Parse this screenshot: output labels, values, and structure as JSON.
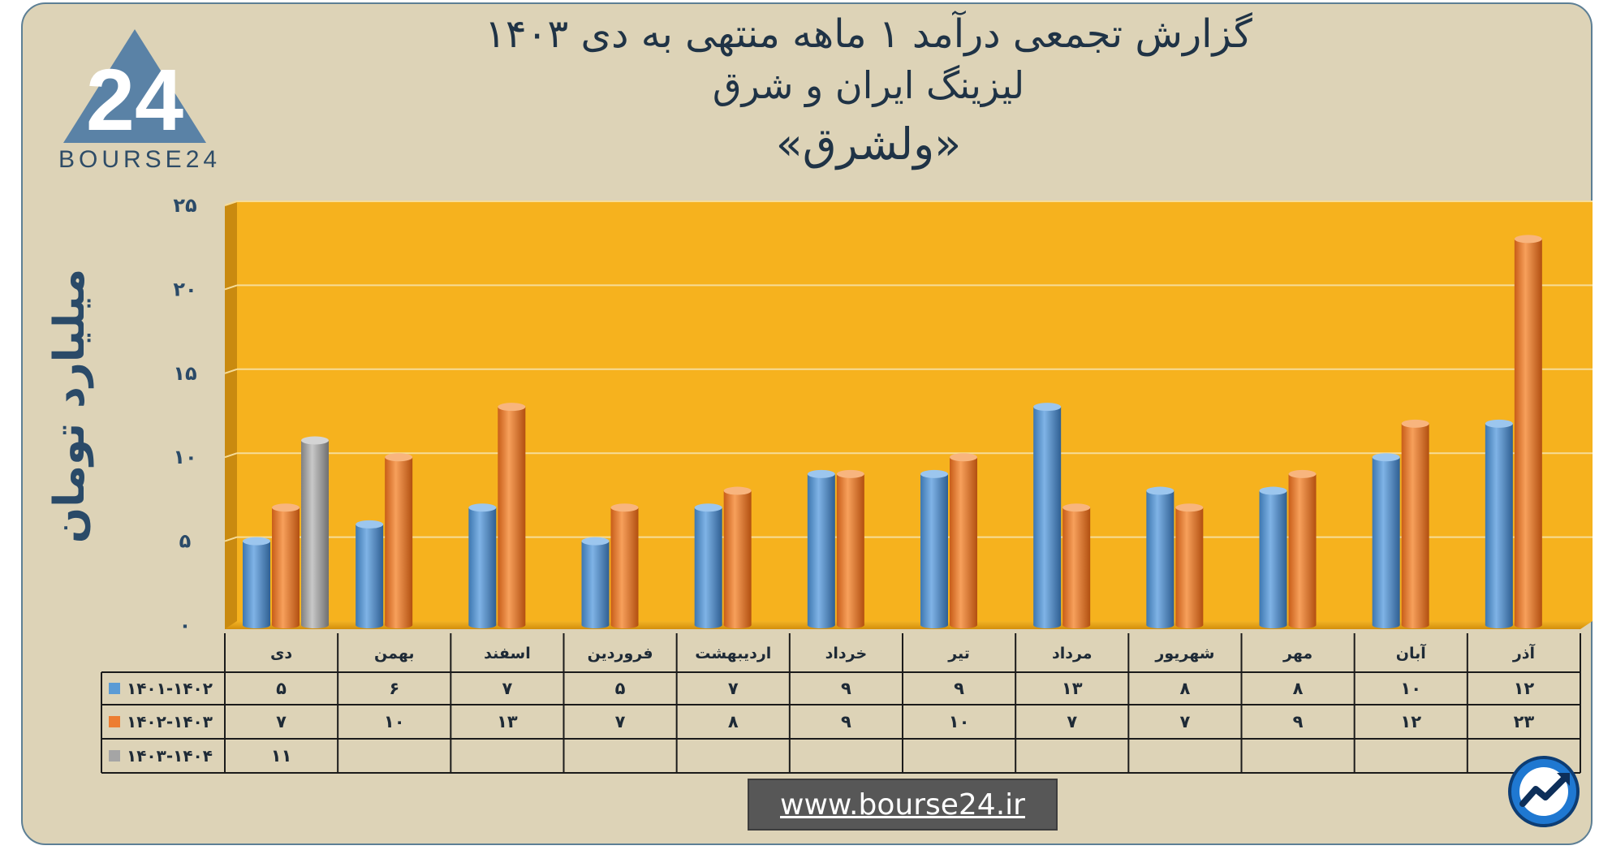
{
  "title": {
    "line1": "گزارش تجمعی درآمد ۱ ماهه منتهی به دی ۱۴۰۳",
    "line2": "لیزینگ ایران و شرق",
    "line3": "«ولشرق»"
  },
  "logo": {
    "text": "BOURSE24",
    "mark": "24"
  },
  "url": "www.bourse24.ir",
  "colors": {
    "panel": "#ddd3b7",
    "plot": "#f6b21e",
    "series_1401": "#5b9bd5",
    "series_1402": "#ed7d31",
    "series_1403": "#a5a5a5",
    "text": "#1f3346"
  },
  "chart_data": {
    "type": "bar",
    "ylabel": "میلیارد تومان",
    "ylim": [
      0,
      25
    ],
    "yticks": [
      {
        "value": 0,
        "label": "۰"
      },
      {
        "value": 5,
        "label": "۵"
      },
      {
        "value": 10,
        "label": "۱۰"
      },
      {
        "value": 15,
        "label": "۱۵"
      },
      {
        "value": 20,
        "label": "۲۰"
      },
      {
        "value": 25,
        "label": "۲۵"
      }
    ],
    "grid": true,
    "categories": [
      "دی",
      "بهمن",
      "اسفند",
      "فروردین",
      "اردیبهشت",
      "خرداد",
      "تیر",
      "مرداد",
      "شهریور",
      "مهر",
      "آبان",
      "آذر"
    ],
    "series": [
      {
        "name": "۱۴۰۱-۱۴۰۲",
        "values": [
          5,
          6,
          7,
          5,
          7,
          9,
          9,
          13,
          8,
          8,
          10,
          12
        ],
        "labels": [
          "۵",
          "۶",
          "۷",
          "۵",
          "۷",
          "۹",
          "۹",
          "۱۳",
          "۸",
          "۸",
          "۱۰",
          "۱۲"
        ]
      },
      {
        "name": "۱۴۰۲-۱۴۰۳",
        "values": [
          7,
          10,
          13,
          7,
          8,
          9,
          10,
          7,
          7,
          9,
          12,
          23
        ],
        "labels": [
          "۷",
          "۱۰",
          "۱۳",
          "۷",
          "۸",
          "۹",
          "۱۰",
          "۷",
          "۷",
          "۹",
          "۱۲",
          "۲۳"
        ]
      },
      {
        "name": "۱۴۰۳-۱۴۰۴",
        "values": [
          11,
          null,
          null,
          null,
          null,
          null,
          null,
          null,
          null,
          null,
          null,
          null
        ],
        "labels": [
          "۱۱",
          "",
          "",
          "",
          "",
          "",
          "",
          "",
          "",
          "",
          "",
          ""
        ]
      }
    ],
    "legend": "data-table"
  }
}
